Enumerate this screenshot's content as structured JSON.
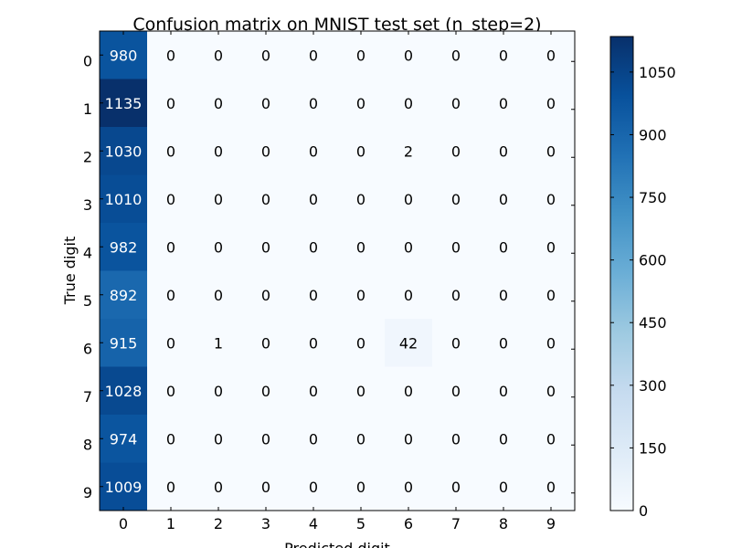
{
  "chart_data": {
    "type": "heatmap",
    "title": "Confusion matrix on MNIST test set (n_step=2)",
    "xlabel": "Predicted digit",
    "ylabel": "True digit",
    "x_categories": [
      "0",
      "1",
      "2",
      "3",
      "4",
      "5",
      "6",
      "7",
      "8",
      "9"
    ],
    "y_categories": [
      "0",
      "1",
      "2",
      "3",
      "4",
      "5",
      "6",
      "7",
      "8",
      "9"
    ],
    "matrix": [
      [
        980,
        0,
        0,
        0,
        0,
        0,
        0,
        0,
        0,
        0
      ],
      [
        1135,
        0,
        0,
        0,
        0,
        0,
        0,
        0,
        0,
        0
      ],
      [
        1030,
        0,
        0,
        0,
        0,
        0,
        2,
        0,
        0,
        0
      ],
      [
        1010,
        0,
        0,
        0,
        0,
        0,
        0,
        0,
        0,
        0
      ],
      [
        982,
        0,
        0,
        0,
        0,
        0,
        0,
        0,
        0,
        0
      ],
      [
        892,
        0,
        0,
        0,
        0,
        0,
        0,
        0,
        0,
        0
      ],
      [
        915,
        0,
        1,
        0,
        0,
        0,
        42,
        0,
        0,
        0
      ],
      [
        1028,
        0,
        0,
        0,
        0,
        0,
        0,
        0,
        0,
        0
      ],
      [
        974,
        0,
        0,
        0,
        0,
        0,
        0,
        0,
        0,
        0
      ],
      [
        1009,
        0,
        0,
        0,
        0,
        0,
        0,
        0,
        0,
        0
      ]
    ],
    "colormap": "Blues",
    "color_range": [
      0,
      1135
    ],
    "colorbar_ticks": [
      0,
      150,
      300,
      450,
      600,
      750,
      900,
      1050
    ],
    "colorbar_tick_labels": [
      "0",
      "150",
      "300",
      "450",
      "600",
      "750",
      "900",
      "1050"
    ],
    "annotation_threshold": 567.5,
    "colors": {
      "light_text": "#ffffff",
      "dark_text": "#000000",
      "frame": "#000000"
    }
  }
}
